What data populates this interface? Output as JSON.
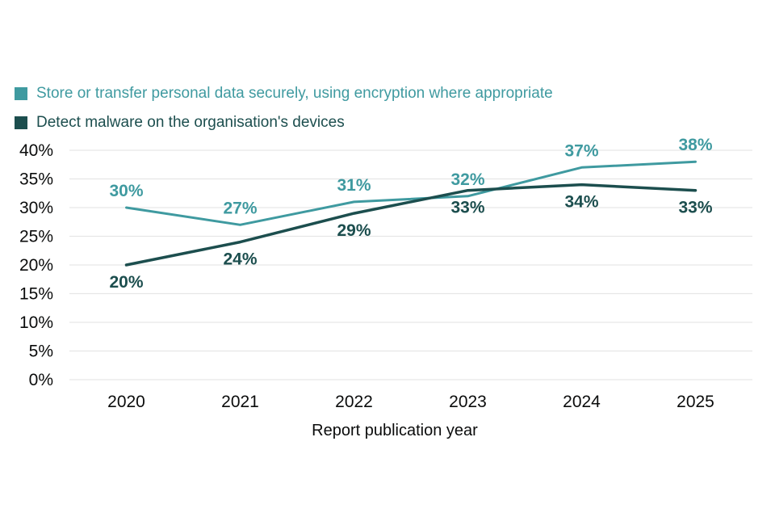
{
  "chart_data": {
    "type": "line",
    "x": [
      "2020",
      "2021",
      "2022",
      "2023",
      "2024",
      "2025"
    ],
    "series": [
      {
        "name": "Store or transfer personal data securely, using encryption where appropriate",
        "values": [
          30,
          27,
          31,
          32,
          37,
          38
        ],
        "color": "#3f9aa0",
        "stroke_width": 3,
        "label_position": "above"
      },
      {
        "name": "Detect malware on the organisation's devices",
        "values": [
          20,
          24,
          29,
          33,
          34,
          33
        ],
        "color": "#1c4e4e",
        "stroke_width": 3.5,
        "label_position": "below"
      }
    ],
    "title": "",
    "xlabel": "Report publication year",
    "ylabel": "",
    "ylim": [
      0,
      40
    ],
    "ytick_step": 5,
    "ytick_suffix": "%",
    "grid": true,
    "grid_color": "#e6e6e6",
    "text_color": "#0b0c0c",
    "legend_position": "top-left"
  }
}
